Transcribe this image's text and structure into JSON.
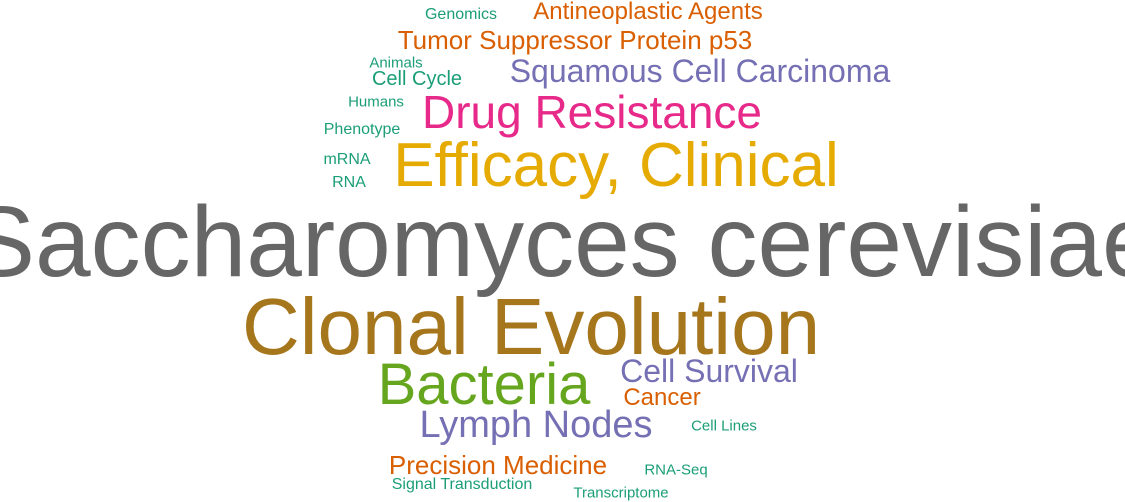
{
  "palette": {
    "grey": "#666666",
    "gold": "#a6761d",
    "yellow": "#e6ab02",
    "green": "#66a61e",
    "magenta": "#e7298a",
    "purple": "#7570b3",
    "orange": "#d95f02",
    "teal": "#1b9e77"
  },
  "words": [
    {
      "text": "Saccharomyces cerevisiae",
      "weight": 10,
      "color": "#666666"
    },
    {
      "text": "Clonal Evolution",
      "weight": 8,
      "color": "#a6761d"
    },
    {
      "text": "Efficacy, Clinical",
      "weight": 6,
      "color": "#e6ab02"
    },
    {
      "text": "Bacteria",
      "weight": 6,
      "color": "#66a61e"
    },
    {
      "text": "Drug Resistance",
      "weight": 5,
      "color": "#e7298a"
    },
    {
      "text": "Lymph Nodes",
      "weight": 4,
      "color": "#7570b3"
    },
    {
      "text": "Squamous Cell Carcinoma",
      "weight": 3,
      "color": "#7570b3"
    },
    {
      "text": "Cell Survival",
      "weight": 3,
      "color": "#7570b3"
    },
    {
      "text": "Tumor Suppressor Protein p53",
      "weight": 2,
      "color": "#d95f02"
    },
    {
      "text": "Precision Medicine",
      "weight": 2,
      "color": "#d95f02"
    },
    {
      "text": "Antineoplastic Agents",
      "weight": 2,
      "color": "#d95f02"
    },
    {
      "text": "Cancer",
      "weight": 2,
      "color": "#d95f02"
    },
    {
      "text": "Cell Cycle",
      "weight": 1.5,
      "color": "#1b9e77"
    },
    {
      "text": "Signal Transduction",
      "weight": 1,
      "color": "#1b9e77"
    },
    {
      "text": "Genomics",
      "weight": 1,
      "color": "#1b9e77"
    },
    {
      "text": "Animals",
      "weight": 1,
      "color": "#1b9e77"
    },
    {
      "text": "Humans",
      "weight": 1,
      "color": "#1b9e77"
    },
    {
      "text": "Phenotype",
      "weight": 1,
      "color": "#1b9e77"
    },
    {
      "text": "mRNA",
      "weight": 1,
      "color": "#1b9e77"
    },
    {
      "text": "RNA",
      "weight": 1,
      "color": "#1b9e77"
    },
    {
      "text": "Cell Lines",
      "weight": 1,
      "color": "#1b9e77"
    },
    {
      "text": "RNA-Seq",
      "weight": 1,
      "color": "#1b9e77"
    },
    {
      "text": "Transcriptome",
      "weight": 1,
      "color": "#1b9e77"
    }
  ]
}
